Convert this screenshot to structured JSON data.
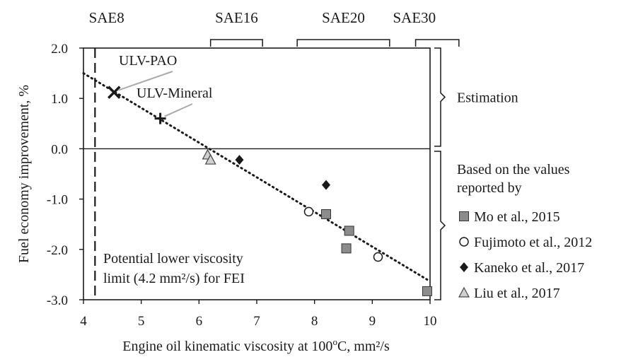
{
  "chart_data": {
    "type": "scatter",
    "xlabel": "Engine oil kinematic viscosity at 100",
    "xlabel_sup": "o",
    "xlabel_tail": "C, mm²/s",
    "ylabel": "Fuel economy improvement, %",
    "xlim": [
      4,
      10
    ],
    "ylim": [
      -3.0,
      2.0
    ],
    "x_ticks": [
      "4",
      "5",
      "6",
      "7",
      "8",
      "9",
      "10"
    ],
    "y_ticks": [
      "2.0",
      "1.0",
      "0.0",
      "-1.0",
      "-2.0",
      "-3.0"
    ],
    "grades": [
      {
        "label": "SAE8",
        "range": null,
        "x": 4.4
      },
      {
        "label": "SAE16",
        "range": [
          6.2,
          7.1
        ],
        "x": 6.65
      },
      {
        "label": "SAE20",
        "range": [
          7.7,
          9.3
        ],
        "x": 8.5
      },
      {
        "label": "SAE30",
        "range": [
          9.75,
          10.5
        ],
        "x": 10.1
      }
    ],
    "limit_line": {
      "x": 4.2
    },
    "limit_text": [
      "Potential lower viscosity",
      "limit (4.2 mm²/s) for FEI"
    ],
    "trend_line": {
      "x": [
        4.0,
        9.95
      ],
      "y": [
        1.5,
        -2.6
      ]
    },
    "brackets": [
      {
        "label": "Estimation",
        "y_range": [
          0.05,
          2.0
        ]
      },
      {
        "label_lines": [
          "Based on the values",
          "reported by"
        ],
        "y_range": [
          -3.0,
          -0.05
        ]
      }
    ],
    "estimates": [
      {
        "name": "ULV-PAO",
        "marker": "x",
        "x": 4.53,
        "y": 1.12
      },
      {
        "name": "ULV-Mineral",
        "marker": "+",
        "x": 5.33,
        "y": 0.6
      }
    ],
    "series": [
      {
        "name": "Mo et al., 2015",
        "marker": "square",
        "x": [
          8.2,
          8.6,
          8.55,
          9.95
        ],
        "y": [
          -1.3,
          -1.63,
          -1.98,
          -2.83
        ]
      },
      {
        "name": "Fujimoto et al., 2012",
        "marker": "circle",
        "x": [
          7.9,
          9.1
        ],
        "y": [
          -1.25,
          -2.15
        ]
      },
      {
        "name": "Kaneko et al., 2017",
        "marker": "diamond",
        "x": [
          6.7,
          8.2
        ],
        "y": [
          -0.22,
          -0.72
        ]
      },
      {
        "name": "Liu et al., 2017",
        "marker": "triangle",
        "x": [
          6.15,
          6.2
        ],
        "y": [
          -0.12,
          -0.22
        ]
      }
    ],
    "colors": {
      "square": "#8c8c8c",
      "triangle": "#d0d0d0",
      "ink": "#1a1a1a"
    }
  }
}
